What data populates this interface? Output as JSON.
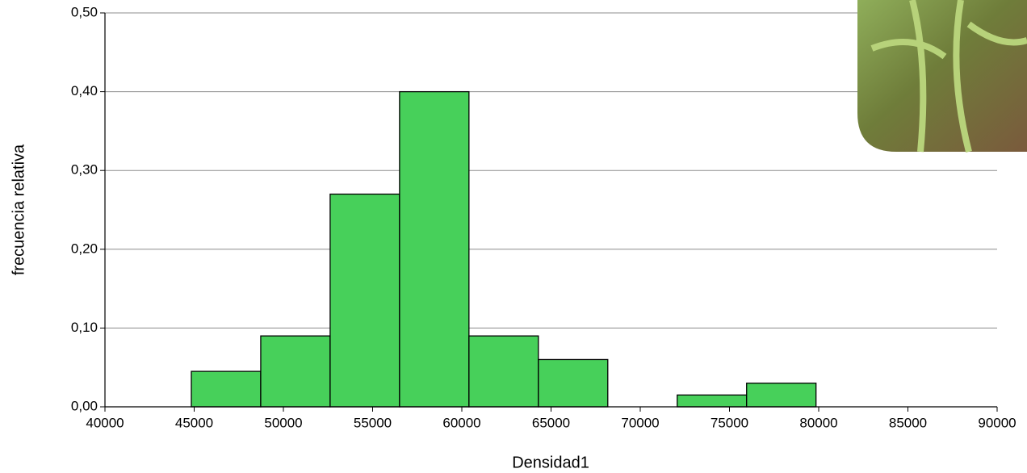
{
  "chart_data": {
    "type": "histogram",
    "x_label": "Densidad1",
    "y_label": "frecuencia relativa",
    "bins": [
      44840,
      48730,
      52620,
      56510,
      60400,
      64290,
      68180,
      72070,
      75960,
      79850
    ],
    "values": [
      0.045,
      0.09,
      0.27,
      0.4,
      0.09,
      0.06,
      0,
      0.015,
      0.03
    ],
    "color": "#47d05a",
    "xlim": [
      40000,
      90000
    ],
    "xticks": [
      40000,
      45000,
      50000,
      55000,
      60000,
      65000,
      70000,
      75000,
      80000,
      85000,
      90000
    ],
    "ylim": [
      0,
      0.5
    ],
    "yticks": [
      {
        "value": 0,
        "label": "0,00"
      },
      {
        "value": 0.1,
        "label": "0,10"
      },
      {
        "value": 0.2,
        "label": "0,20"
      },
      {
        "value": 0.3,
        "label": "0,30"
      },
      {
        "value": 0.4,
        "label": "0,40"
      },
      {
        "value": 0.5,
        "label": "0,50"
      }
    ],
    "grid": true
  }
}
